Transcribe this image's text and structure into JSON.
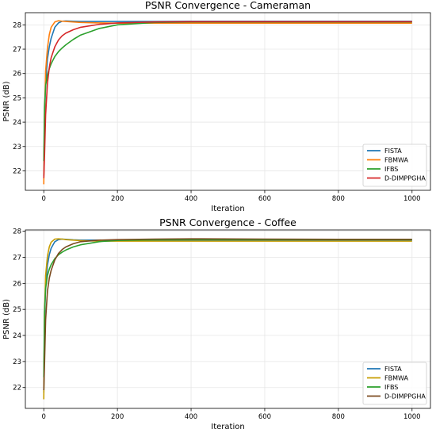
{
  "chart_data": [
    {
      "type": "line",
      "title": "PSNR Convergence - Cameraman",
      "xlabel": "Iteration",
      "ylabel": "PSNR (dB)",
      "xlim": [
        -50,
        1050
      ],
      "ylim": [
        21.2,
        28.5
      ],
      "xticks": [
        0,
        200,
        400,
        600,
        800,
        1000
      ],
      "yticks": [
        22,
        23,
        24,
        25,
        26,
        27,
        28
      ],
      "grid": true,
      "legend_position": "lower-right",
      "series": [
        {
          "name": "FISTA",
          "color": "#1f77b4",
          "x": [
            0,
            2,
            5,
            10,
            15,
            20,
            30,
            40,
            50,
            60,
            80,
            100,
            150,
            200,
            300,
            400,
            600,
            800,
            1000
          ],
          "y": [
            21.8,
            24.0,
            25.6,
            26.6,
            27.1,
            27.45,
            27.9,
            28.08,
            28.15,
            28.16,
            28.15,
            28.14,
            28.14,
            28.14,
            28.14,
            28.15,
            28.15,
            28.15,
            28.15
          ]
        },
        {
          "name": "FBMWA",
          "color": "#ff7f0e",
          "x": [
            0,
            2,
            5,
            10,
            15,
            20,
            30,
            40,
            50,
            60,
            80,
            100,
            150,
            200,
            300,
            400,
            600,
            800,
            1000
          ],
          "y": [
            21.45,
            24.2,
            26.1,
            27.05,
            27.6,
            27.9,
            28.12,
            28.17,
            28.15,
            28.14,
            28.12,
            28.1,
            28.08,
            28.07,
            28.07,
            28.07,
            28.07,
            28.07,
            28.07
          ]
        },
        {
          "name": "IFBS",
          "color": "#2ca02c",
          "x": [
            0,
            2,
            5,
            10,
            15,
            20,
            30,
            40,
            50,
            60,
            80,
            100,
            150,
            200,
            300,
            400,
            600,
            800,
            1000
          ],
          "y": [
            22.4,
            24.6,
            25.5,
            25.95,
            26.2,
            26.4,
            26.7,
            26.9,
            27.05,
            27.18,
            27.4,
            27.58,
            27.85,
            28.0,
            28.1,
            28.12,
            28.12,
            28.12,
            28.12
          ]
        },
        {
          "name": "D-DIMPPGHA",
          "color": "#d62728",
          "x": [
            0,
            2,
            5,
            10,
            15,
            20,
            30,
            40,
            50,
            60,
            80,
            100,
            150,
            200,
            300,
            400,
            600,
            800,
            1000
          ],
          "y": [
            21.7,
            22.6,
            24.3,
            25.6,
            26.25,
            26.65,
            27.1,
            27.38,
            27.55,
            27.66,
            27.8,
            27.9,
            28.02,
            28.08,
            28.12,
            28.13,
            28.13,
            28.13,
            28.13
          ]
        }
      ]
    },
    {
      "type": "line",
      "title": "PSNR Convergence - Coffee",
      "xlabel": "Iteration",
      "ylabel": "PSNR (dB)",
      "xlim": [
        -50,
        1050
      ],
      "ylim": [
        21.2,
        28.05
      ],
      "xticks": [
        0,
        200,
        400,
        600,
        800,
        1000
      ],
      "yticks": [
        22,
        23,
        24,
        25,
        26,
        27,
        28
      ],
      "grid": true,
      "legend_position": "lower-right",
      "series": [
        {
          "name": "FISTA",
          "color": "#1f77b4",
          "x": [
            0,
            2,
            5,
            10,
            15,
            20,
            30,
            40,
            50,
            60,
            80,
            100,
            150,
            200,
            300,
            400,
            600,
            800,
            1000
          ],
          "y": [
            21.8,
            24.5,
            25.9,
            26.7,
            27.1,
            27.35,
            27.6,
            27.68,
            27.7,
            27.69,
            27.67,
            27.66,
            27.66,
            27.66,
            27.66,
            27.66,
            27.66,
            27.66,
            27.66
          ]
        },
        {
          "name": "FBMWA",
          "color": "#c79d00",
          "x": [
            0,
            2,
            5,
            10,
            15,
            20,
            30,
            40,
            50,
            60,
            80,
            100,
            150,
            200,
            300,
            400,
            600,
            800,
            1000
          ],
          "y": [
            21.55,
            24.8,
            26.3,
            27.05,
            27.4,
            27.58,
            27.7,
            27.71,
            27.7,
            27.68,
            27.66,
            27.64,
            27.62,
            27.62,
            27.62,
            27.62,
            27.62,
            27.62,
            27.62
          ]
        },
        {
          "name": "IFBS",
          "color": "#2ca02c",
          "x": [
            0,
            2,
            5,
            10,
            15,
            20,
            30,
            40,
            50,
            60,
            80,
            100,
            150,
            200,
            300,
            400,
            600,
            800,
            1000
          ],
          "y": [
            22.4,
            24.9,
            25.8,
            26.3,
            26.55,
            26.72,
            26.95,
            27.1,
            27.2,
            27.28,
            27.4,
            27.48,
            27.6,
            27.65,
            27.67,
            27.68,
            27.68,
            27.68,
            27.68
          ]
        },
        {
          "name": "D-DIMPPGHA",
          "color": "#7b4a1e",
          "x": [
            0,
            2,
            5,
            10,
            15,
            20,
            30,
            40,
            50,
            60,
            80,
            100,
            150,
            200,
            300,
            400,
            600,
            800,
            1000
          ],
          "y": [
            21.9,
            22.9,
            24.6,
            25.7,
            26.2,
            26.5,
            26.9,
            27.15,
            27.3,
            27.4,
            27.52,
            27.6,
            27.66,
            27.68,
            27.7,
            27.71,
            27.7,
            27.69,
            27.69
          ]
        }
      ]
    }
  ]
}
